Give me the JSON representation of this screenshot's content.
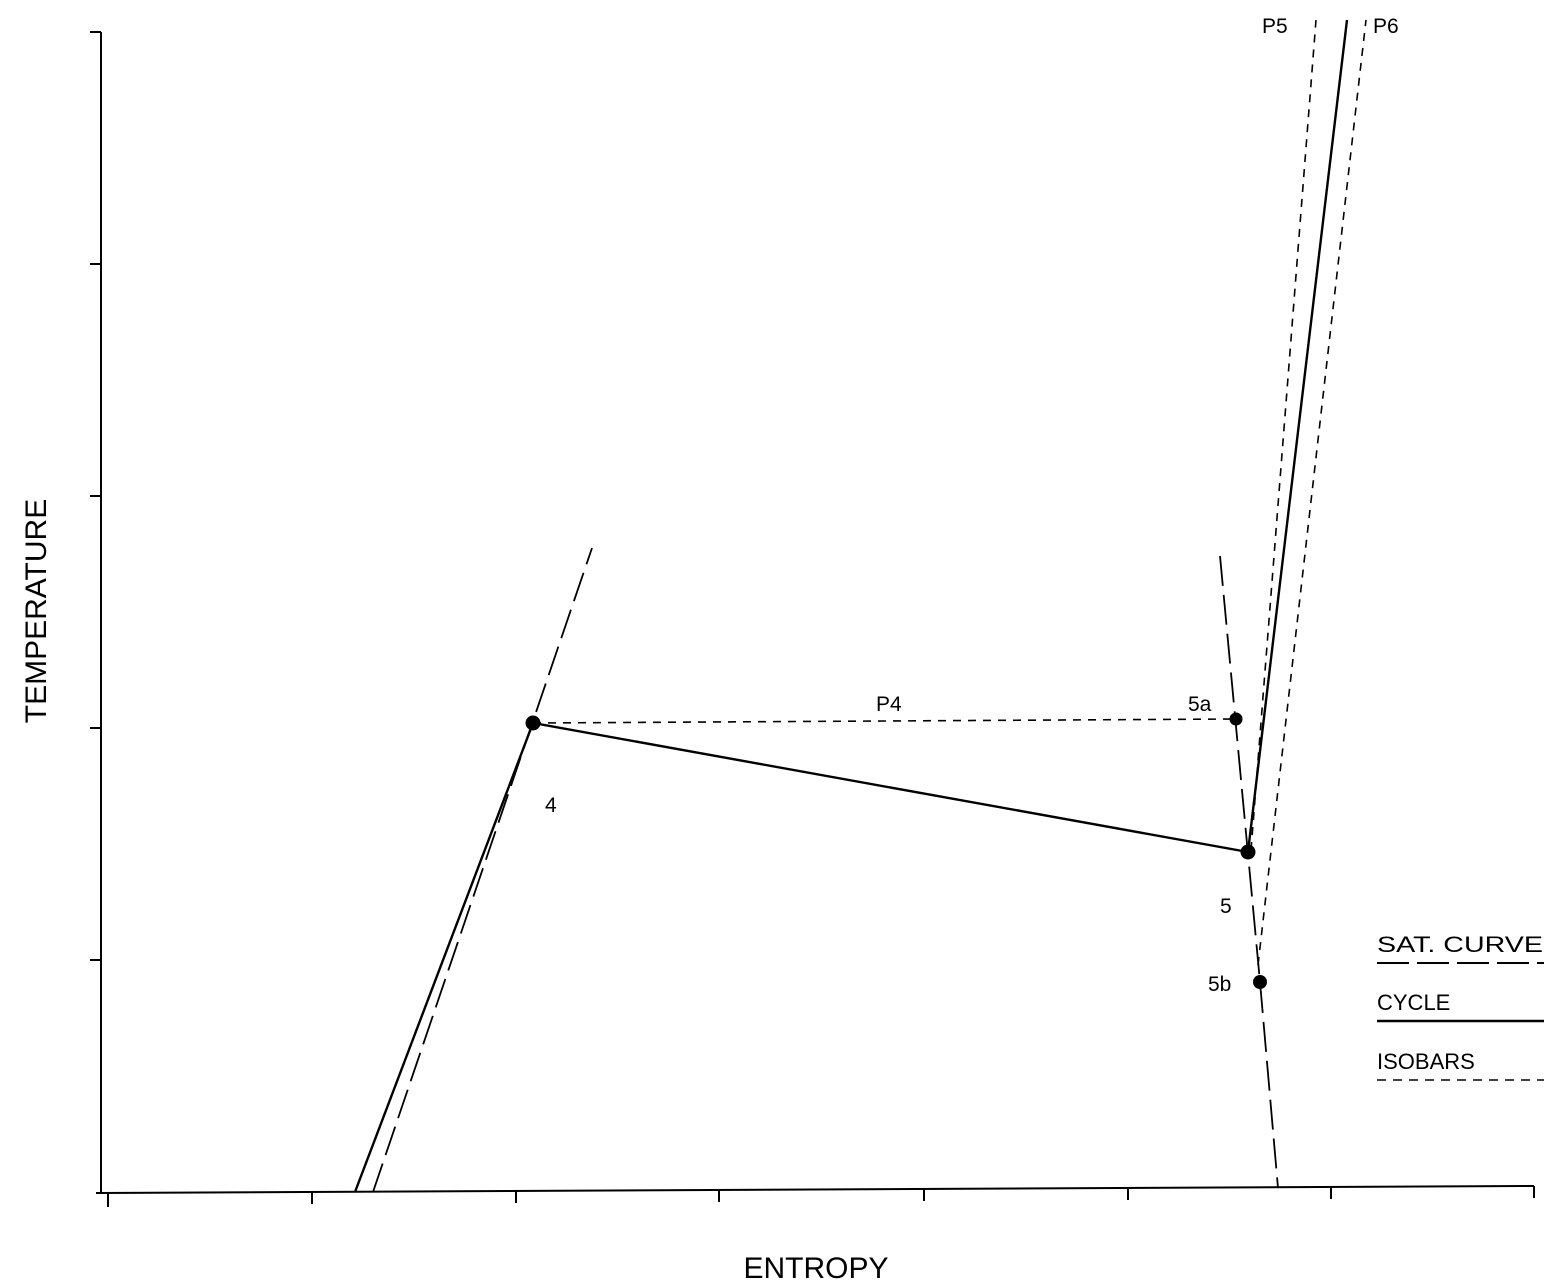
{
  "axes": {
    "x_label": "ENTROPY",
    "y_label": "TEMPERATURE"
  },
  "states": {
    "p4": "P4",
    "p5": "P5",
    "p6": "P6",
    "s4": "4",
    "s5": "5",
    "s5a": "5a",
    "s5b": "5b"
  },
  "legend": {
    "sat_curve": "SAT. CURVE",
    "cycle": "CYCLE",
    "isobars": "ISOBARS"
  }
}
